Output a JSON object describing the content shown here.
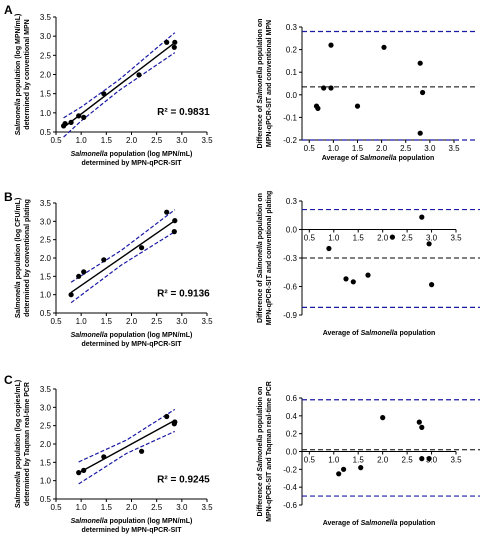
{
  "panel_labels": [
    "A",
    "B",
    "C"
  ],
  "chart_data": [
    {
      "type": "scatter",
      "panel": "A",
      "kind": "regression",
      "xlabel_parts": [
        {
          "t": "Salmonella",
          "i": true
        },
        {
          "t": " population (log MPN/mL)",
          "i": false
        }
      ],
      "xlabel_line2": "determined by MPN-qPCR-SIT",
      "ylabel_parts": [
        {
          "t": "Salmonella",
          "i": true
        },
        {
          "t": " population (log MPN/mL)",
          "i": false
        }
      ],
      "ylabel_line2": "determined by conventional MPN",
      "xticks": [
        "0.5",
        "1.0",
        "1.5",
        "2.0",
        "2.5",
        "3.0",
        "3.5"
      ],
      "yticks": [
        "0.5",
        "1.0",
        "1.5",
        "2.0",
        "2.5",
        "3.0",
        "3.5"
      ],
      "xlim": [
        0.5,
        3.5
      ],
      "ylim": [
        0.5,
        3.5
      ],
      "r2_label": "R² = 0.9831",
      "points": [
        [
          0.65,
          0.66
        ],
        [
          0.68,
          0.72
        ],
        [
          0.8,
          0.75
        ],
        [
          0.95,
          0.92
        ],
        [
          1.05,
          0.88
        ],
        [
          1.45,
          1.5
        ],
        [
          2.15,
          1.99
        ],
        [
          2.7,
          2.84
        ],
        [
          2.85,
          2.71
        ],
        [
          2.86,
          2.84
        ]
      ],
      "fit": {
        "slope": 1.0,
        "intercept": -0.03
      },
      "ci_band": [
        [
          0.65,
          0.25
        ],
        [
          1.0,
          0.18
        ],
        [
          1.75,
          0.14
        ],
        [
          2.86,
          0.26
        ]
      ]
    },
    {
      "type": "scatter",
      "panel": "A",
      "kind": "bland-altman",
      "xlabel_parts": [
        {
          "t": "Average of ",
          "i": false
        },
        {
          "t": "Salmonella",
          "i": true
        },
        {
          "t": " population",
          "i": false
        }
      ],
      "ylabel_parts": [
        {
          "t": "Difference of ",
          "i": false
        },
        {
          "t": "Salmonella",
          "i": true
        },
        {
          "t": " population on",
          "i": false
        }
      ],
      "ylabel_line2": "MPN-qPCR-SIT and conventional MPN",
      "xticks": [
        "0.5",
        "1.0",
        "1.5",
        "2.0",
        "2.5",
        "3.0",
        "3.5"
      ],
      "yticks": [
        "-0.2",
        "-0.1",
        "0.0",
        "0.1",
        "0.2",
        "0.3"
      ],
      "xlim": [
        0.35,
        3.5
      ],
      "ylim": [
        -0.2,
        0.3
      ],
      "points": [
        [
          0.65,
          -0.05
        ],
        [
          0.68,
          -0.06
        ],
        [
          0.8,
          0.03
        ],
        [
          0.95,
          0.03
        ],
        [
          0.95,
          0.22
        ],
        [
          1.5,
          -0.05
        ],
        [
          2.05,
          0.21
        ],
        [
          2.8,
          0.14
        ],
        [
          2.8,
          -0.17
        ],
        [
          2.85,
          0.01
        ]
      ],
      "mean_bias": 0.035,
      "limits": [
        -0.2,
        0.28
      ]
    },
    {
      "type": "scatter",
      "panel": "B",
      "kind": "regression",
      "xlabel_parts": [
        {
          "t": "Salmonella",
          "i": true
        },
        {
          "t": " population (log MPN/mL)",
          "i": false
        }
      ],
      "xlabel_line2": "determined by MPN-qPCR-SIT",
      "ylabel_parts": [
        {
          "t": "Salmonella",
          "i": true
        },
        {
          "t": " population (log CFU/mL)",
          "i": false
        }
      ],
      "ylabel_line2": "determined by conventional plating",
      "xticks": [
        "0.5",
        "1.0",
        "1.5",
        "2.0",
        "2.5",
        "3.0",
        "3.5"
      ],
      "yticks": [
        "0.5",
        "1.0",
        "1.5",
        "2.0",
        "2.5",
        "3.0",
        "3.5"
      ],
      "xlim": [
        0.5,
        3.5
      ],
      "ylim": [
        0.5,
        3.5
      ],
      "r2_label": "R² = 0.9136",
      "points": [
        [
          0.8,
          1.0
        ],
        [
          0.95,
          1.5
        ],
        [
          1.05,
          1.62
        ],
        [
          1.45,
          1.95
        ],
        [
          2.2,
          2.28
        ],
        [
          2.7,
          3.25
        ],
        [
          2.85,
          2.72
        ],
        [
          2.86,
          3.02
        ]
      ],
      "fit": {
        "slope": 0.95,
        "intercept": 0.3
      },
      "ci_band": [
        [
          0.8,
          0.28
        ],
        [
          1.8,
          0.2
        ],
        [
          2.86,
          0.3
        ]
      ]
    },
    {
      "type": "scatter",
      "panel": "B",
      "kind": "bland-altman",
      "xlabel_parts": [
        {
          "t": "Average of ",
          "i": false
        },
        {
          "t": "Salmonella",
          "i": true
        },
        {
          "t": " population",
          "i": false
        }
      ],
      "ylabel_parts": [
        {
          "t": "Difference of ",
          "i": false
        },
        {
          "t": "Salmonella",
          "i": true
        },
        {
          "t": " population on",
          "i": false
        }
      ],
      "ylabel_line2": "MPN-qPCR-SIT and conventional plating",
      "xticks": [
        "0.5",
        "1.0",
        "1.5",
        "2.0",
        "2.5",
        "3.0",
        "3.5"
      ],
      "yticks": [
        "0.3",
        "0.0",
        "-0.3",
        "-0.6",
        "-0.9"
      ],
      "xlim": [
        0.35,
        3.5
      ],
      "ylim": [
        -0.9,
        0.3
      ],
      "axis_at": 0.0,
      "points": [
        [
          0.9,
          -0.2
        ],
        [
          1.25,
          -0.52
        ],
        [
          1.4,
          -0.55
        ],
        [
          1.7,
          -0.48
        ],
        [
          2.2,
          -0.08
        ],
        [
          2.8,
          0.13
        ],
        [
          2.95,
          -0.15
        ],
        [
          3.0,
          -0.58
        ]
      ],
      "mean_bias": -0.3,
      "limits": [
        -0.82,
        0.21
      ]
    },
    {
      "type": "scatter",
      "panel": "C",
      "kind": "regression",
      "xlabel_parts": [
        {
          "t": "Salmonella",
          "i": true
        },
        {
          "t": " population (log MPN/mL)",
          "i": false
        }
      ],
      "xlabel_line2": "determined by MPN-qPCR-SIT",
      "ylabel_parts": [
        {
          "t": "Salmonella",
          "i": true
        },
        {
          "t": " population (log copies/mL)",
          "i": false
        }
      ],
      "ylabel_line2": "determined by Taqman real-time PCR",
      "xticks": [
        "0.5",
        "1.0",
        "1.5",
        "2.0",
        "2.5",
        "3.0",
        "3.5"
      ],
      "yticks": [
        "0.5",
        "1.0",
        "1.5",
        "2.0",
        "2.5",
        "3.0",
        "3.5"
      ],
      "xlim": [
        0.5,
        3.5
      ],
      "ylim": [
        0.5,
        3.5
      ],
      "r2_label": "R² = 0.9245",
      "points": [
        [
          0.95,
          1.22
        ],
        [
          1.05,
          1.28
        ],
        [
          1.45,
          1.65
        ],
        [
          2.2,
          1.8
        ],
        [
          2.7,
          2.75
        ],
        [
          2.85,
          2.55
        ],
        [
          2.86,
          2.6
        ]
      ],
      "fit": {
        "slope": 0.75,
        "intercept": 0.5
      },
      "ci_band": [
        [
          0.95,
          0.3
        ],
        [
          1.9,
          0.18
        ],
        [
          2.86,
          0.3
        ]
      ]
    },
    {
      "type": "scatter",
      "panel": "C",
      "kind": "bland-altman",
      "xlabel_parts": [
        {
          "t": "Average of ",
          "i": false
        },
        {
          "t": "Salmonella",
          "i": true
        },
        {
          "t": " population",
          "i": false
        }
      ],
      "ylabel_parts": [
        {
          "t": "Difference of ",
          "i": false
        },
        {
          "t": "Salmonella",
          "i": true
        },
        {
          "t": " population on",
          "i": false
        }
      ],
      "ylabel_line2": "MPN-qPCR-SIT and Taqman real-time PCR",
      "xticks": [
        "0.5",
        "1.0",
        "1.5",
        "2.0",
        "2.5",
        "3.0",
        "3.5"
      ],
      "yticks": [
        "0.6",
        "0.4",
        "0.2",
        "0.0",
        "-0.2",
        "-0.4",
        "-0.6"
      ],
      "xlim": [
        0.35,
        3.5
      ],
      "ylim": [
        -0.6,
        0.6
      ],
      "axis_at": 0.0,
      "points": [
        [
          1.1,
          -0.25
        ],
        [
          1.2,
          -0.2
        ],
        [
          1.55,
          -0.18
        ],
        [
          2.0,
          0.38
        ],
        [
          2.75,
          0.33
        ],
        [
          2.8,
          0.27
        ],
        [
          2.8,
          -0.08
        ],
        [
          2.95,
          -0.08
        ]
      ],
      "mean_bias": 0.02,
      "limits": [
        -0.5,
        0.58
      ]
    }
  ]
}
